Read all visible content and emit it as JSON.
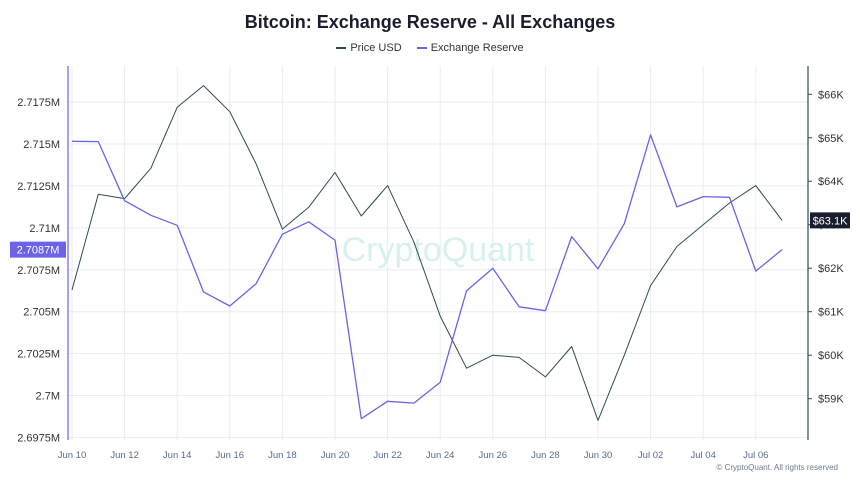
{
  "chart_data": {
    "type": "line",
    "title": "Bitcoin: Exchange Reserve - All Exchanges",
    "categories": [
      "Jun 10",
      "Jun 11",
      "Jun 12",
      "Jun 13",
      "Jun 14",
      "Jun 15",
      "Jun 16",
      "Jun 17",
      "Jun 18",
      "Jun 19",
      "Jun 20",
      "Jun 21",
      "Jun 22",
      "Jun 23",
      "Jun 24",
      "Jun 25",
      "Jun 26",
      "Jun 27",
      "Jun 28",
      "Jun 29",
      "Jun 30",
      "Jul 01",
      "Jul 02",
      "Jul 03",
      "Jul 04",
      "Jul 05",
      "Jul 06",
      "Jul 07"
    ],
    "x_tick_labels": [
      "Jun 10",
      "Jun 12",
      "Jun 14",
      "Jun 16",
      "Jun 18",
      "Jun 20",
      "Jun 22",
      "Jun 24",
      "Jun 26",
      "Jun 28",
      "Jun 30",
      "Jul 02",
      "Jul 04",
      "Jul 06"
    ],
    "series": [
      {
        "name": "Price USD",
        "axis": "right",
        "color": "#2f4a4f",
        "values": [
          61.5,
          63.7,
          63.6,
          64.3,
          65.7,
          66.2,
          65.6,
          64.4,
          62.9,
          63.4,
          64.2,
          63.2,
          63.9,
          62.6,
          60.9,
          59.7,
          60.0,
          59.95,
          59.5,
          60.2,
          58.5,
          60.0,
          61.6,
          62.5,
          63.0,
          63.5,
          63.9,
          63.1
        ]
      },
      {
        "name": "Exchange Reserve",
        "axis": "left",
        "color": "#6c63e8",
        "values": [
          2.71516,
          2.71514,
          2.71162,
          2.71075,
          2.71015,
          2.70618,
          2.70534,
          2.70667,
          2.70962,
          2.71036,
          2.70927,
          2.69862,
          2.69966,
          2.69955,
          2.70079,
          2.70624,
          2.70759,
          2.70529,
          2.70506,
          2.70948,
          2.70756,
          2.71025,
          2.71554,
          2.71125,
          2.71186,
          2.71182,
          2.70742,
          2.7087
        ]
      }
    ],
    "y_left": {
      "ticks": [
        "2.6975M",
        "2.7M",
        "2.7025M",
        "2.705M",
        "2.7075M",
        "2.71M",
        "2.7125M",
        "2.715M",
        "2.7175M"
      ],
      "ylim": [
        2.69735,
        2.71965
      ]
    },
    "y_right": {
      "ticks": [
        "$59K",
        "$60K",
        "$61K",
        "$62K",
        "$63K",
        "$64K",
        "$65K",
        "$66K"
      ],
      "ylim": [
        58.05,
        66.65
      ]
    },
    "left_badge": "2.7087M",
    "right_badge": "$63.1K",
    "grid": true,
    "legend_position": "top-center"
  },
  "watermark": "CryptoQuant",
  "footer": "© CryptoQuant. All rights reserved",
  "colors": {
    "price": "#2f4a4f",
    "reserve": "#6c63e8",
    "badge_left": "#6c63e8",
    "badge_right": "#1a1d2e",
    "grid": "#e6eef3"
  }
}
